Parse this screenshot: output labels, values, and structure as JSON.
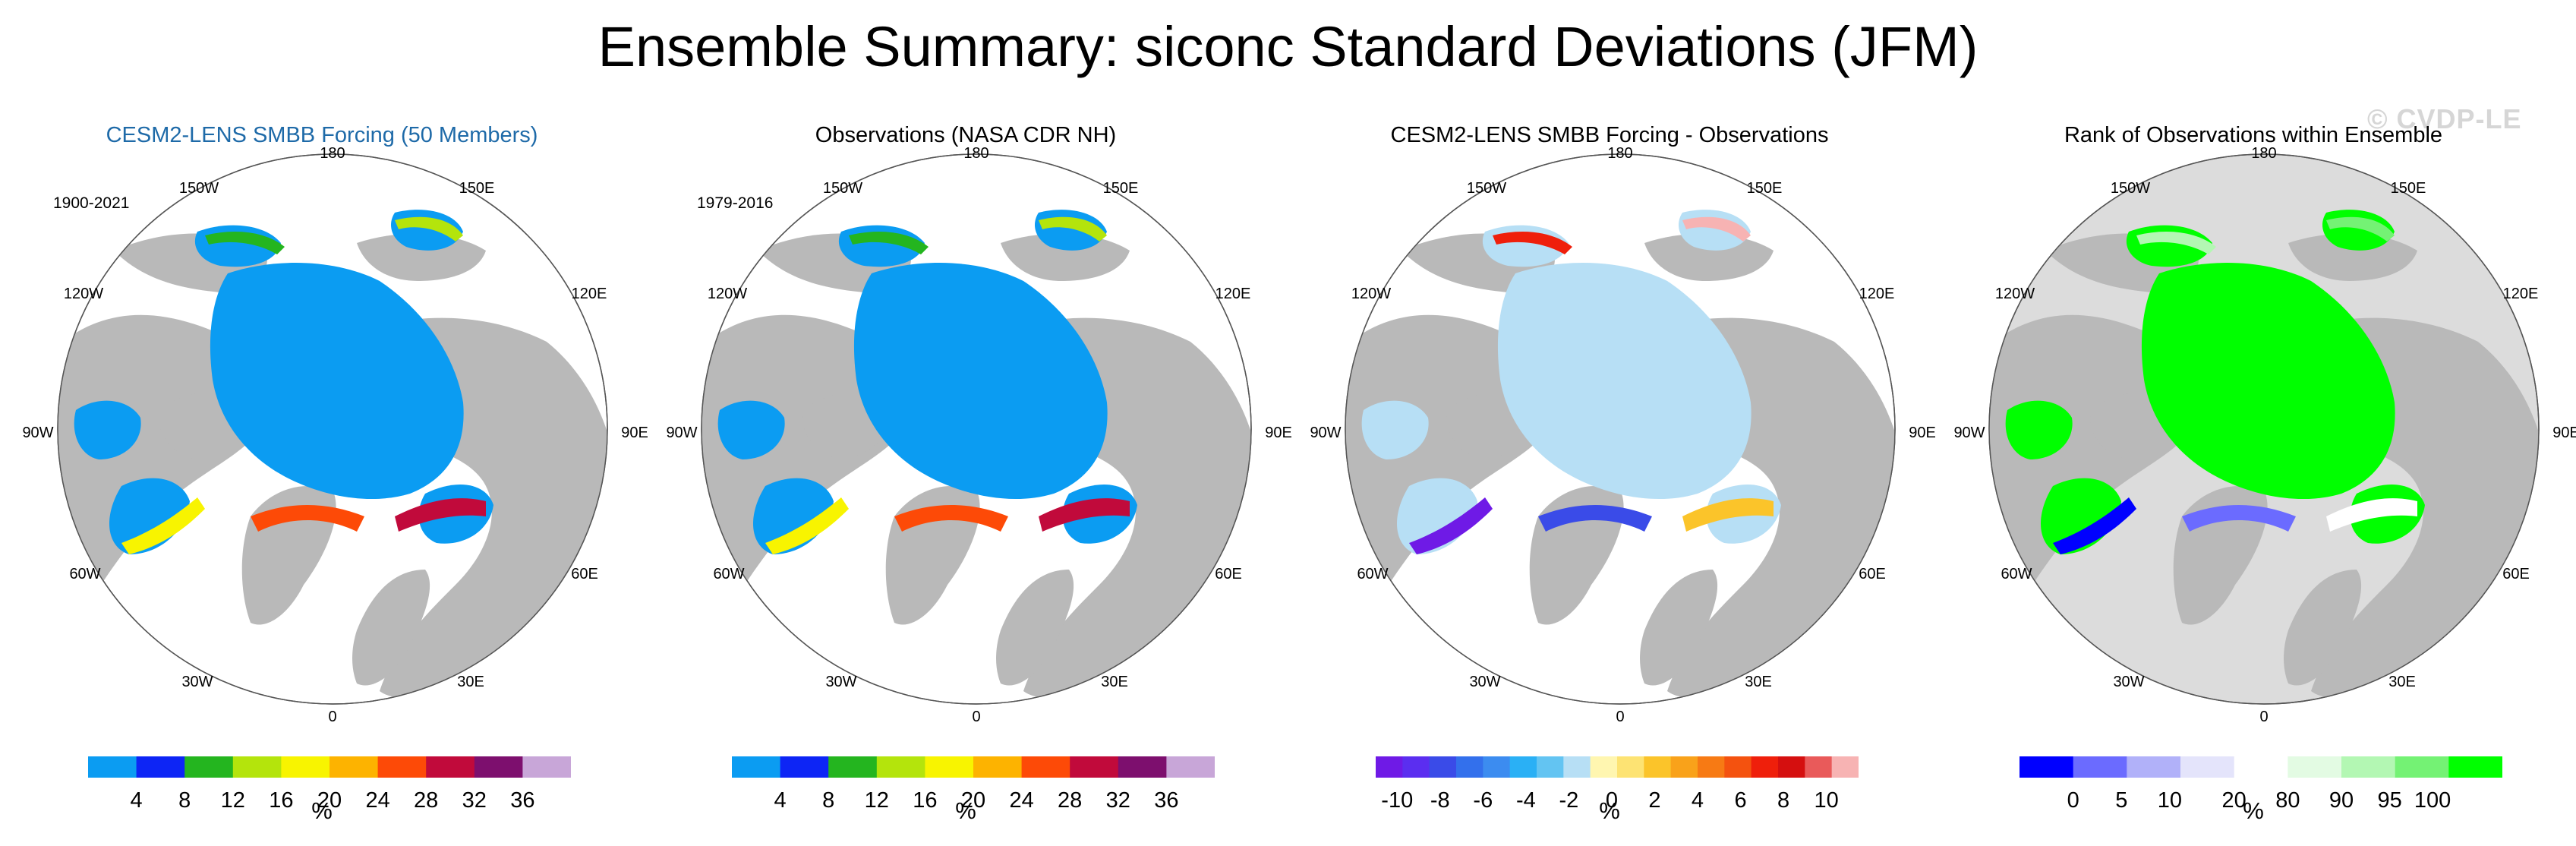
{
  "title": "Ensemble Summary: siconc Standard Deviations (JFM)",
  "watermark": "© CVDP-LE",
  "longitude_labels": [
    "180",
    "150W",
    "150E",
    "120W",
    "120E",
    "90W",
    "90E",
    "60W",
    "60E",
    "30W",
    "30E",
    "0"
  ],
  "colors": {
    "land": "#b9b9b9",
    "ocean": "#ffffff",
    "arctic_blue": "#0b9cf2",
    "anomaly_light_blue": "#b7dff5",
    "rank_green": "#00ff00",
    "rank_background": "#dcdcdc",
    "title_blue": "#1e6aa8"
  },
  "panels": [
    {
      "title": "CESM2-LENS SMBB Forcing (50 Members)",
      "date_range": "1900-2021",
      "map_type": "std",
      "colorbar": {
        "colors": [
          "#0b9cf2",
          "#0d25f5",
          "#24b51f",
          "#b4e40c",
          "#f8f400",
          "#fdb300",
          "#fd4a07",
          "#c10a3b",
          "#7d0f6e",
          "#c8a6d8"
        ],
        "tick_labels": [
          "4",
          "8",
          "12",
          "16",
          "20",
          "24",
          "28",
          "32",
          "36"
        ]
      },
      "unit": "%"
    },
    {
      "title": "Observations (NASA CDR NH)",
      "date_range": "1979-2016",
      "map_type": "std",
      "colorbar": {
        "colors": [
          "#0b9cf2",
          "#0d25f5",
          "#24b51f",
          "#b4e40c",
          "#f8f400",
          "#fdb300",
          "#fd4a07",
          "#c10a3b",
          "#7d0f6e",
          "#c8a6d8"
        ],
        "tick_labels": [
          "4",
          "8",
          "12",
          "16",
          "20",
          "24",
          "28",
          "32",
          "36"
        ]
      },
      "unit": "%"
    },
    {
      "title": "CESM2-LENS SMBB Forcing - Observations",
      "date_range": "",
      "map_type": "diff",
      "colorbar": {
        "colors": [
          "#6f1ae6",
          "#5b2ef0",
          "#3a4be8",
          "#3370ec",
          "#3c8cf0",
          "#2ab0f5",
          "#63c4f2",
          "#b7dff5",
          "#fff6b0",
          "#fde373",
          "#fbc42a",
          "#f9a21a",
          "#f77a14",
          "#f4520f",
          "#ef1f0b",
          "#d50f0f",
          "#e95a5a",
          "#f7b3b3"
        ],
        "tick_labels": [
          "-10",
          "-8",
          "-6",
          "-4",
          "-2",
          "0",
          "2",
          "4",
          "6",
          "8",
          "10"
        ]
      },
      "unit": "%"
    },
    {
      "title": "Rank of Observations within Ensemble",
      "date_range": "",
      "map_type": "rank",
      "colorbar": {
        "colors": [
          "#0000ff",
          "#6b6bff",
          "#b1b1f9",
          "#e4e4fb",
          "#ffffff",
          "#e3fbe3",
          "#b3f7b3",
          "#74f274",
          "#00ff00"
        ],
        "tick_labels": [
          "0",
          "5",
          "10",
          "20",
          "80",
          "90",
          "95",
          "100"
        ]
      },
      "unit": "%"
    }
  ]
}
